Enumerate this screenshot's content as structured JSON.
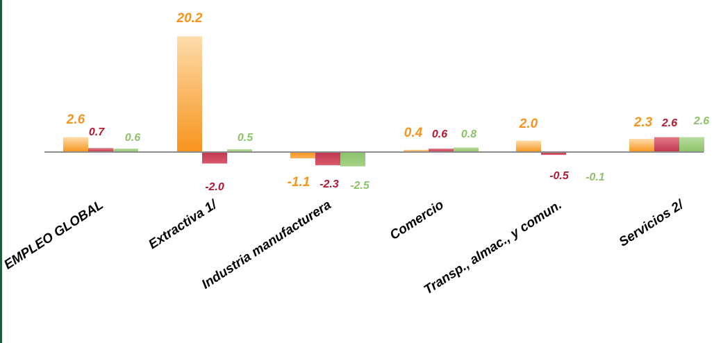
{
  "chart_data": {
    "type": "bar",
    "title": "",
    "xlabel": "",
    "ylabel": "",
    "categories": [
      "EMPLEO GLOBAL",
      "Extractiva 1/",
      "Industria manufacturera",
      "Comercio",
      "Transp., almac., y comun.",
      "Servicios 2/"
    ],
    "series": [
      {
        "values": [
          2.6,
          20.2,
          -1.1,
          0.4,
          2.0,
          2.3
        ],
        "color": "#f7941d",
        "label_color": "#f7941d"
      },
      {
        "values": [
          0.7,
          -2.0,
          -2.3,
          0.6,
          -0.5,
          2.6
        ],
        "color": "#c0364f",
        "label_color": "#b5172f"
      },
      {
        "values": [
          0.6,
          0.5,
          -2.5,
          0.8,
          -0.1,
          2.6
        ],
        "color": "#8cc26a",
        "label_color": "#8cc26a"
      }
    ],
    "value_labels": [
      [
        "2.6",
        "20.2",
        "-1.1",
        "0.4",
        "2.0",
        "2.3"
      ],
      [
        "0.7",
        "-2.0",
        "-2.3",
        "0.6",
        "-0.5",
        "2.6"
      ],
      [
        "0.6",
        "0.5",
        "-2.5",
        "0.8",
        "-0.1",
        "2.6"
      ]
    ],
    "ylim": [
      -3,
      21
    ],
    "grid": false,
    "legend": "none"
  }
}
